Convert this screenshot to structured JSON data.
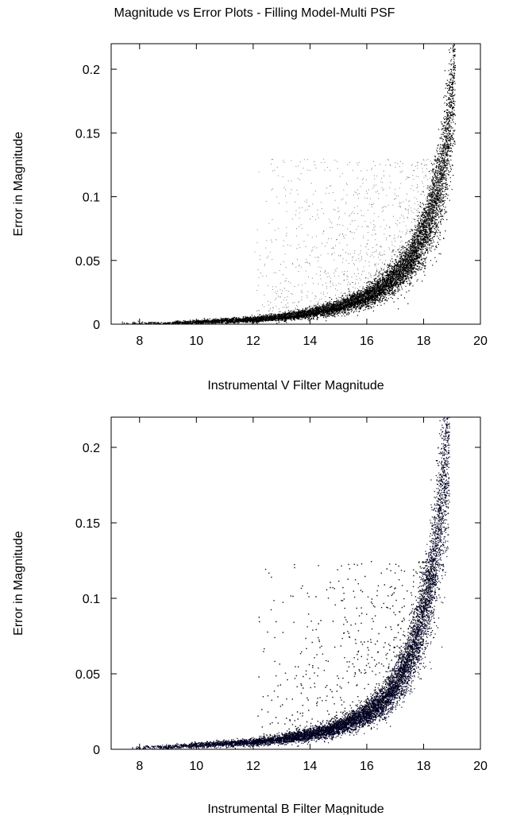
{
  "title": "Magnitude vs Error Plots - Filling Model-Multi PSF",
  "chart_data": [
    {
      "type": "scatter",
      "title": "",
      "xlabel": "Instrumental V Filter Magnitude",
      "ylabel": "Error in Magnitude",
      "xlim": [
        7,
        20
      ],
      "ylim": [
        0,
        0.22
      ],
      "xticks": [
        8,
        10,
        12,
        14,
        16,
        18,
        20
      ],
      "yticks": [
        0,
        0.05,
        0.1,
        0.15,
        0.2
      ],
      "xtick_labels": [
        "8",
        "10",
        "12",
        "14",
        "16",
        "18",
        "20"
      ],
      "ytick_labels": [
        "0",
        "0.05",
        "0.1",
        "0.15",
        "0.2"
      ],
      "grid": false,
      "point_color": "#000000",
      "trend": {
        "x": [
          7.2,
          9,
          10,
          11,
          12,
          13,
          14,
          15,
          16,
          16.5,
          17,
          17.5,
          18,
          18.3,
          18.6,
          18.8,
          19.0,
          19.1
        ],
        "y": [
          0.001,
          0.001,
          0.002,
          0.003,
          0.004,
          0.006,
          0.009,
          0.014,
          0.022,
          0.029,
          0.038,
          0.05,
          0.07,
          0.09,
          0.115,
          0.14,
          0.18,
          0.22
        ]
      },
      "scatter_region": {
        "x": [
          12,
          19
        ],
        "y": [
          0.01,
          0.13
        ]
      }
    },
    {
      "type": "scatter",
      "title": "",
      "xlabel": "Instrumental B Filter Magnitude",
      "ylabel": "Error in Magnitude",
      "xlim": [
        7,
        20
      ],
      "ylim": [
        0,
        0.22
      ],
      "xticks": [
        8,
        10,
        12,
        14,
        16,
        18,
        20
      ],
      "yticks": [
        0,
        0.05,
        0.1,
        0.15,
        0.2
      ],
      "xtick_labels": [
        "8",
        "10",
        "12",
        "14",
        "16",
        "18",
        "20"
      ],
      "ytick_labels": [
        "0",
        "0.05",
        "0.1",
        "0.15",
        "0.2"
      ],
      "grid": false,
      "point_color": "#000022",
      "trend": {
        "x": [
          7.5,
          9,
          10,
          11,
          12,
          13,
          14,
          15,
          16,
          16.5,
          17,
          17.5,
          17.8,
          18.1,
          18.4,
          18.6,
          18.8,
          18.9
        ],
        "y": [
          0.001,
          0.002,
          0.003,
          0.004,
          0.005,
          0.007,
          0.01,
          0.015,
          0.024,
          0.031,
          0.042,
          0.06,
          0.077,
          0.1,
          0.13,
          0.16,
          0.195,
          0.22
        ]
      },
      "scatter_region": {
        "x": [
          12,
          18.5
        ],
        "y": [
          0.01,
          0.125
        ]
      }
    }
  ]
}
